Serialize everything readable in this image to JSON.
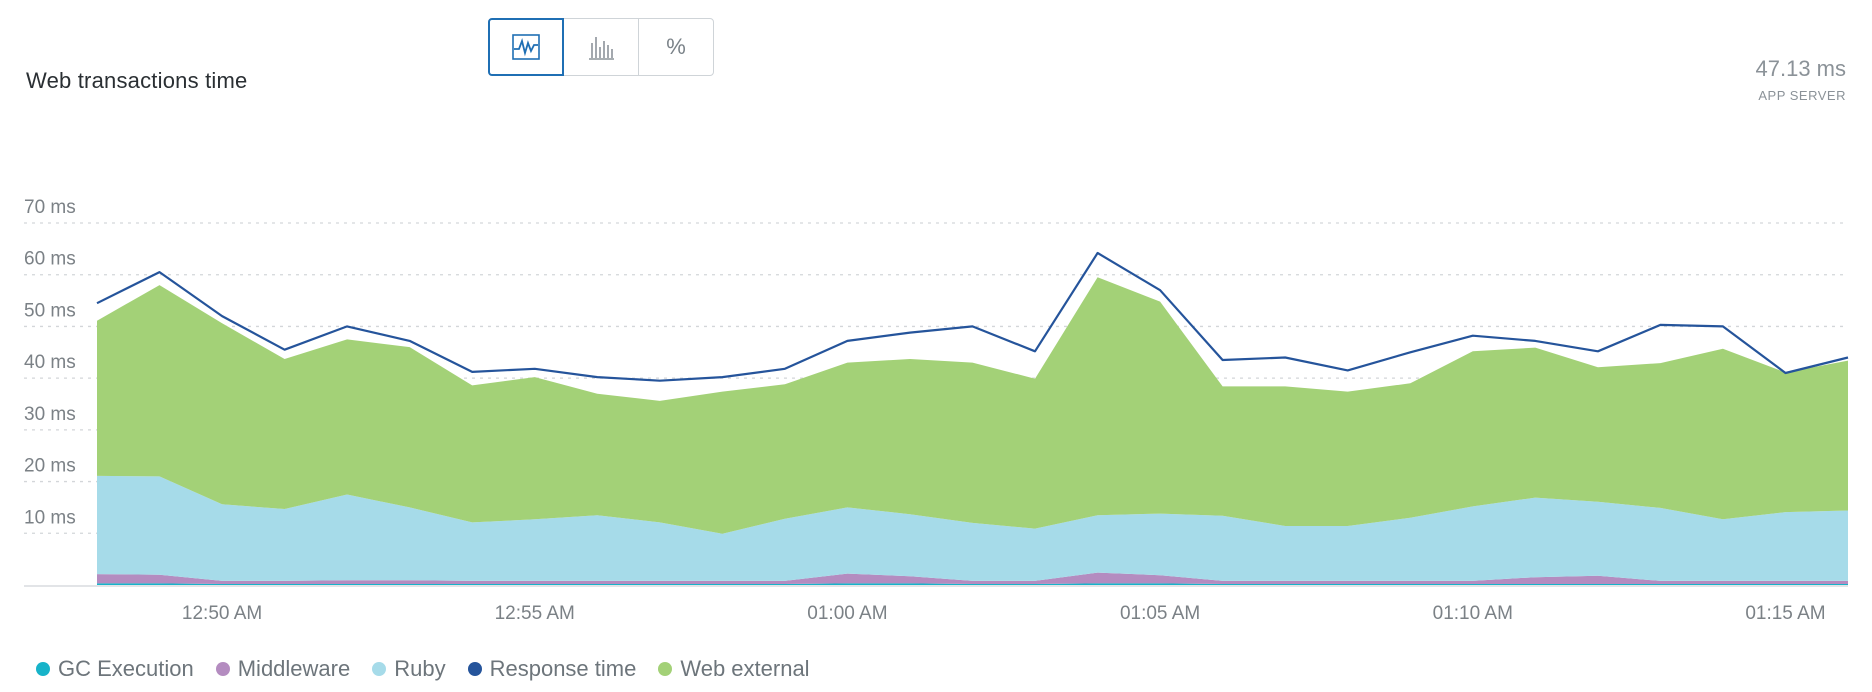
{
  "header": {
    "title": "Web transactions time",
    "summary_value": "47.13 ms",
    "summary_label": "APP SERVER"
  },
  "view_switch": {
    "buttons": [
      {
        "icon": "area-chart-icon",
        "active": true
      },
      {
        "icon": "bar-chart-icon",
        "active": false
      },
      {
        "icon": "percent-icon",
        "label": "%",
        "active": false
      }
    ]
  },
  "colors": {
    "gc_execution": "#17b3c9",
    "middleware": "#b48cc0",
    "ruby": "#a6dbe9",
    "response_time": "#25549b",
    "web_external": "#a3d177",
    "grid": "#d3d6d9",
    "axis_text": "#7b8186"
  },
  "chart_data": {
    "type": "area",
    "stacked": true,
    "y_tick_labels": [
      "10 ms",
      "20 ms",
      "30 ms",
      "40 ms",
      "50 ms",
      "60 ms",
      "70 ms"
    ],
    "y_ticks": [
      10,
      20,
      30,
      40,
      50,
      60,
      70
    ],
    "ylim": [
      0,
      70
    ],
    "x_tick_labels": [
      "12:50 AM",
      "12:55 AM",
      "01:00 AM",
      "01:05 AM",
      "01:10 AM",
      "01:15 AM"
    ],
    "x_tick_minutes": [
      50,
      55,
      60,
      65,
      70,
      75
    ],
    "x_minutes": [
      48,
      49,
      50,
      51,
      52,
      53,
      54,
      55,
      56,
      57,
      58,
      59,
      60,
      61,
      62,
      63,
      64,
      65,
      66,
      67,
      68,
      69,
      70,
      71,
      72,
      73,
      74,
      75,
      76
    ],
    "grid": true,
    "legend_position": "bottom-left",
    "series": [
      {
        "name": "GC Execution",
        "key": "gc_execution",
        "values": [
          0.3,
          0.3,
          0.2,
          0.2,
          0.2,
          0.2,
          0.2,
          0.2,
          0.2,
          0.2,
          0.2,
          0.2,
          0.3,
          0.3,
          0.2,
          0.2,
          0.3,
          0.3,
          0.2,
          0.2,
          0.2,
          0.2,
          0.2,
          0.2,
          0.2,
          0.2,
          0.2,
          0.2,
          0.2
        ]
      },
      {
        "name": "Middleware",
        "key": "middleware",
        "values": [
          1.8,
          1.7,
          0.6,
          0.6,
          0.7,
          0.7,
          0.6,
          0.6,
          0.6,
          0.6,
          0.6,
          0.6,
          1.9,
          1.4,
          0.6,
          0.6,
          2.1,
          1.6,
          0.6,
          0.6,
          0.6,
          0.6,
          0.6,
          1.3,
          1.6,
          0.6,
          0.6,
          0.6,
          0.6
        ]
      },
      {
        "name": "Ruby",
        "key": "ruby",
        "values": [
          19,
          19,
          14.8,
          13.9,
          16.6,
          14.1,
          11.3,
          11.9,
          12.7,
          11.3,
          9.1,
          12,
          12.8,
          12,
          11.2,
          10.1,
          11.1,
          11.9,
          12.6,
          10.6,
          10.6,
          12.2,
          14.4,
          15.4,
          14.3,
          14.1,
          11.9,
          13.3,
          13.6
        ]
      },
      {
        "name": "Web external",
        "key": "web_external",
        "values": [
          30,
          37,
          35,
          29,
          30,
          31,
          26.5,
          27.5,
          23.5,
          23.5,
          27.5,
          26,
          28,
          30,
          31,
          29,
          46,
          41,
          25,
          27,
          26,
          26,
          30,
          29,
          26,
          28,
          33,
          27,
          29
        ]
      },
      {
        "name": "Response time",
        "key": "response_time",
        "line": true,
        "values": [
          54.5,
          60.5,
          52,
          45.5,
          50,
          47.2,
          41.2,
          41.8,
          40.2,
          39.5,
          40.2,
          41.8,
          47.2,
          48.8,
          50,
          45.2,
          64.2,
          57,
          43.5,
          44,
          41.5,
          45,
          48.2,
          47.2,
          45.2,
          50.3,
          50,
          41,
          44
        ]
      }
    ]
  }
}
